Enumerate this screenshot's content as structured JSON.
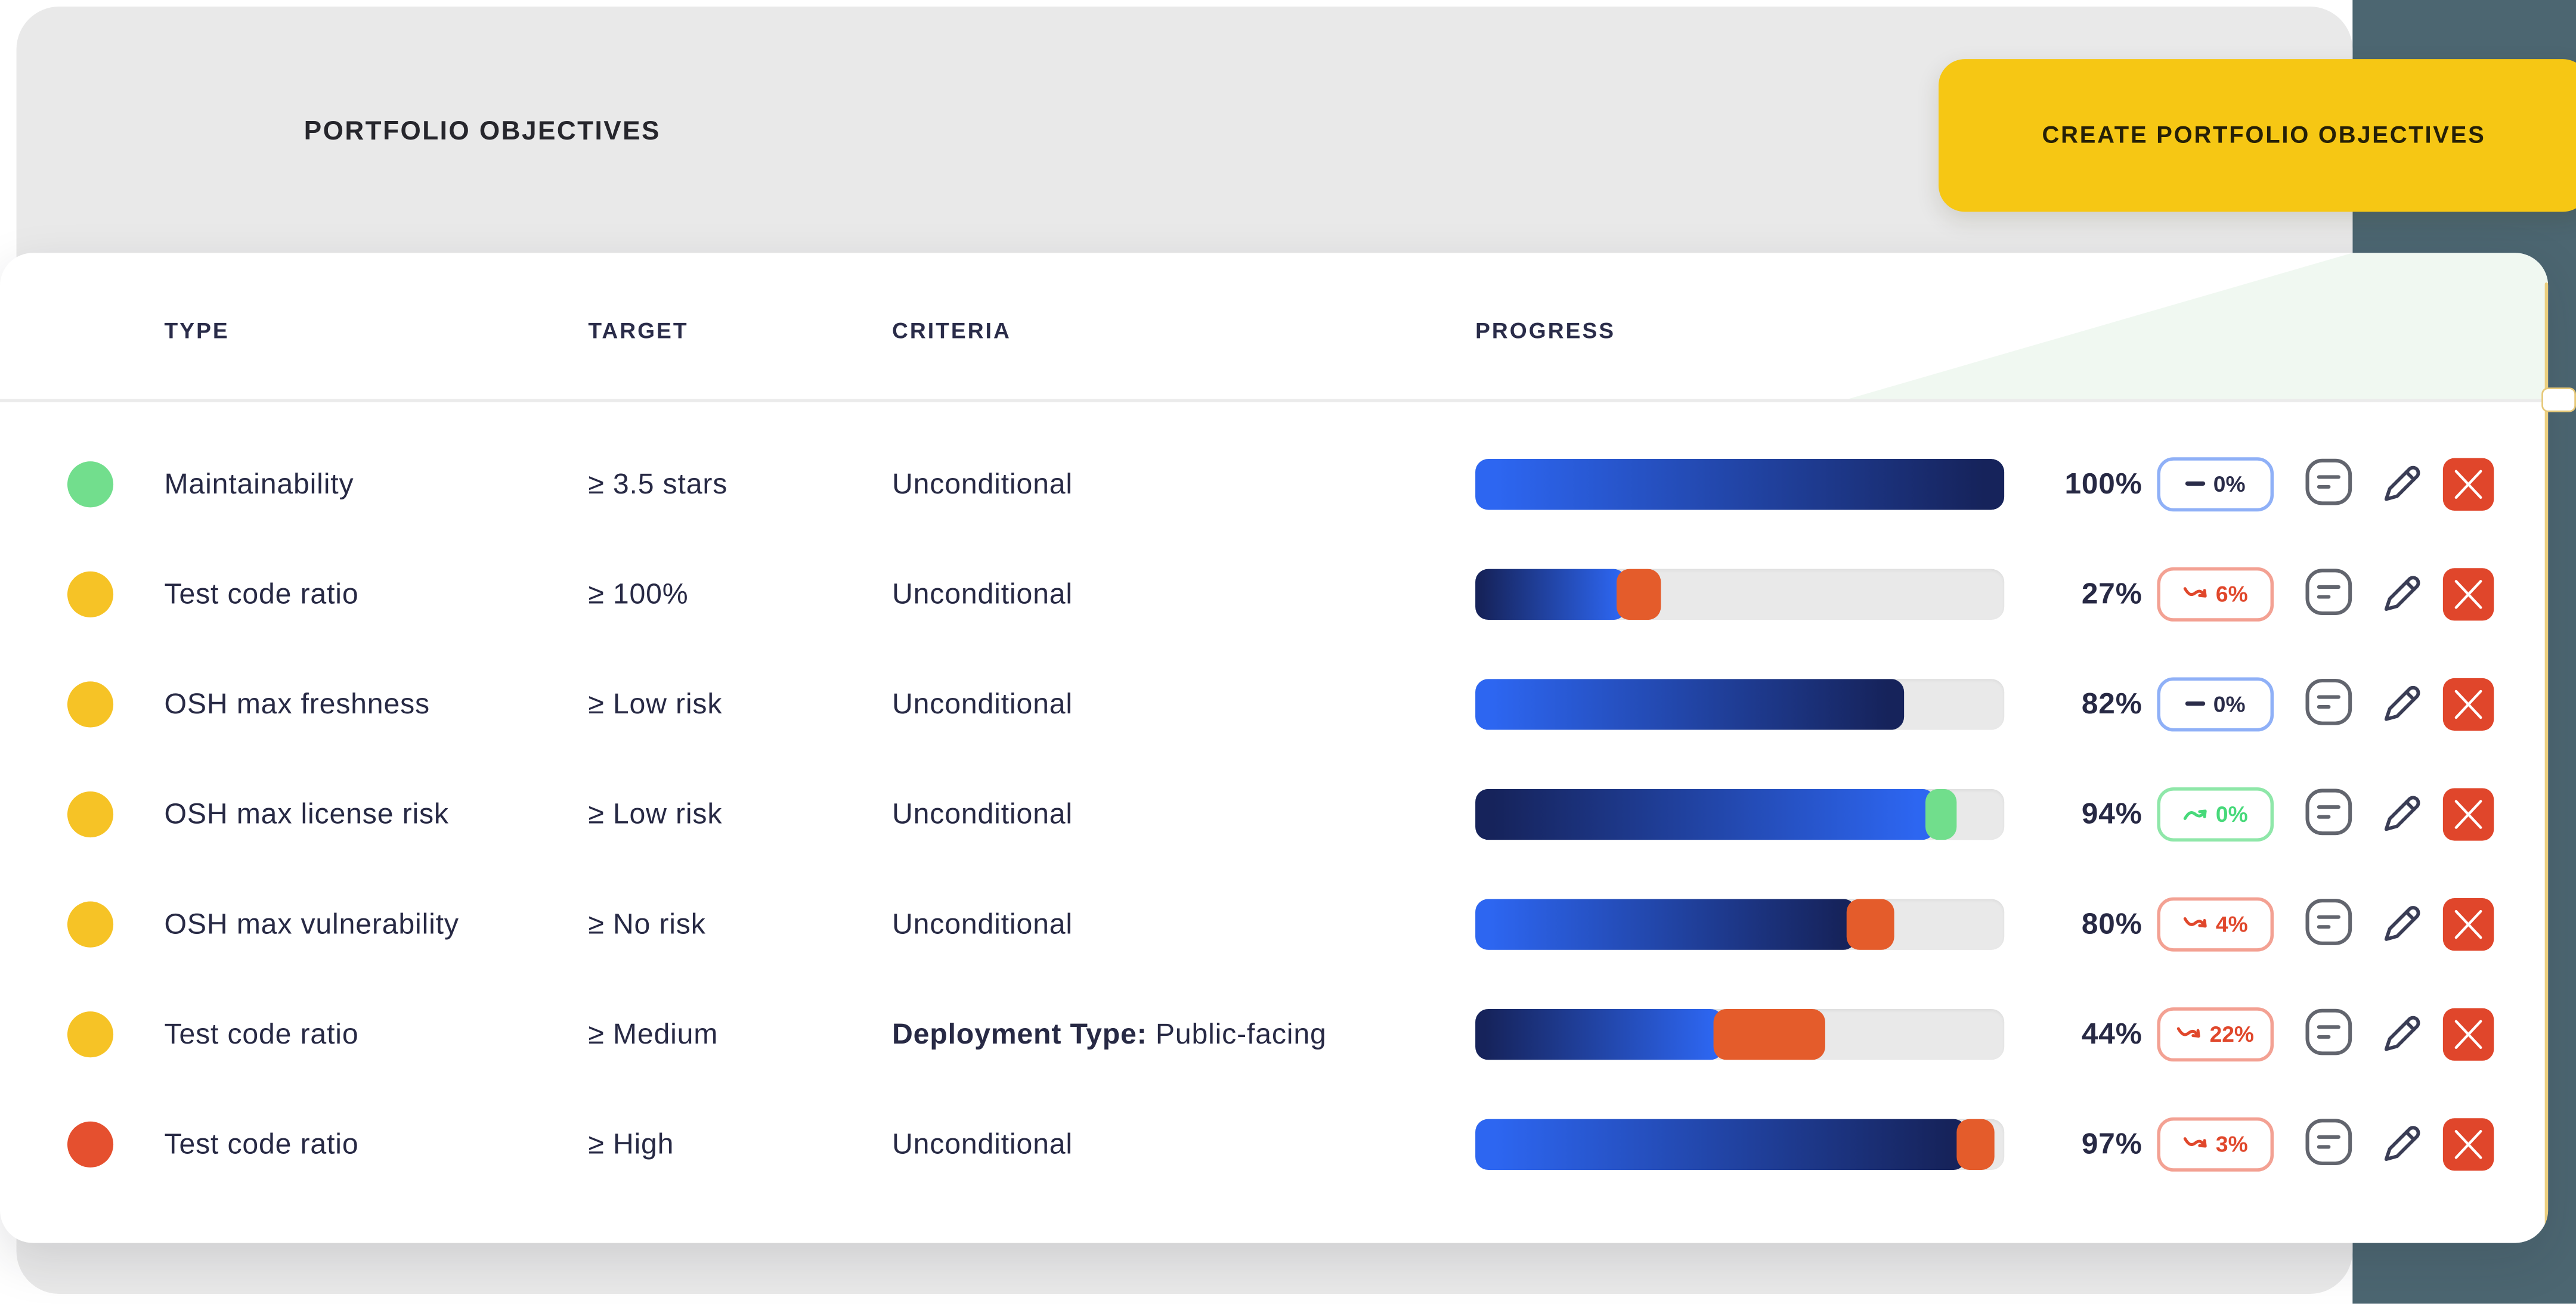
{
  "page": {
    "title": "PORTFOLIO OBJECTIVES",
    "create_button_label": "CREATE PORTFOLIO OBJECTIVES"
  },
  "colors": {
    "background_dark": "#4C6671",
    "panel_gray": "#E9E9E9",
    "button_yellow": "#F6C714",
    "text_navy": "#272944",
    "bar_blue_light": "#2D66F1",
    "bar_blue_dark": "#16235B",
    "bar_track": "#E9E9E9",
    "accent_orange": "#E45C2B",
    "accent_green": "#71DE8C",
    "delete_red": "#E0462B"
  },
  "table": {
    "columns": [
      "TYPE",
      "TARGET",
      "CRITERIA",
      "PROGRESS"
    ],
    "rows": [
      {
        "dot_color": "#72DE8D",
        "type": "Maintainability",
        "target": "≥ 3.5 stars",
        "criteria_bold": "",
        "criteria": "Unconditional",
        "progress": "100%",
        "delta": "0%",
        "trend": "flat",
        "scheme": "neutral",
        "bar": {
          "blue_pct": 100,
          "accent_pct": 0,
          "accent_color": "",
          "direction": "light-to-dark"
        }
      },
      {
        "dot_color": "#F6C326",
        "type": "Test code ratio",
        "target": "≥ 100%",
        "criteria_bold": "",
        "criteria": "Unconditional",
        "progress": "27%",
        "delta": "6%",
        "trend": "down",
        "scheme": "bad",
        "bar": {
          "blue_pct": 28.5,
          "accent_pct": 8.5,
          "accent_color": "#E45C2B",
          "direction": "dark-to-light"
        }
      },
      {
        "dot_color": "#F6C326",
        "type": "OSH max freshness",
        "target": "≥ Low risk",
        "criteria_bold": "",
        "criteria": "Unconditional",
        "progress": "82%",
        "delta": "0%",
        "trend": "flat",
        "scheme": "neutral",
        "bar": {
          "blue_pct": 81,
          "accent_pct": 0,
          "accent_color": "",
          "direction": "light-to-dark"
        }
      },
      {
        "dot_color": "#F6C326",
        "type": "OSH max license risk",
        "target": "≥ Low risk",
        "criteria_bold": "",
        "criteria": "Unconditional",
        "progress": "94%",
        "delta": "0%",
        "trend": "up",
        "scheme": "good",
        "bar": {
          "blue_pct": 87,
          "accent_pct": 6,
          "accent_color": "#71DE8C",
          "direction": "dark-to-light"
        }
      },
      {
        "dot_color": "#F6C326",
        "type": "OSH max vulnerability",
        "target": "≥ No risk",
        "criteria_bold": "",
        "criteria": "Unconditional",
        "progress": "80%",
        "delta": "4%",
        "trend": "down",
        "scheme": "bad",
        "bar": {
          "blue_pct": 72,
          "accent_pct": 9,
          "accent_color": "#E45C2B",
          "direction": "light-to-dark"
        }
      },
      {
        "dot_color": "#F6C326",
        "type": "Test code ratio",
        "target": "≥ Medium",
        "criteria_bold": "Deployment Type:",
        "criteria": " Public-facing",
        "progress": "44%",
        "delta": "22%",
        "trend": "down",
        "scheme": "bad",
        "bar": {
          "blue_pct": 47,
          "accent_pct": 21,
          "accent_color": "#E45C2B",
          "direction": "dark-to-light"
        }
      },
      {
        "dot_color": "#E5502F",
        "type": "Test code ratio",
        "target": "≥ High",
        "criteria_bold": "",
        "criteria": "Unconditional",
        "progress": "97%",
        "delta": "3%",
        "trend": "down",
        "scheme": "bad",
        "bar": {
          "blue_pct": 93,
          "accent_pct": 7,
          "accent_color": "#E45C2B",
          "direction": "light-to-dark"
        }
      }
    ]
  }
}
